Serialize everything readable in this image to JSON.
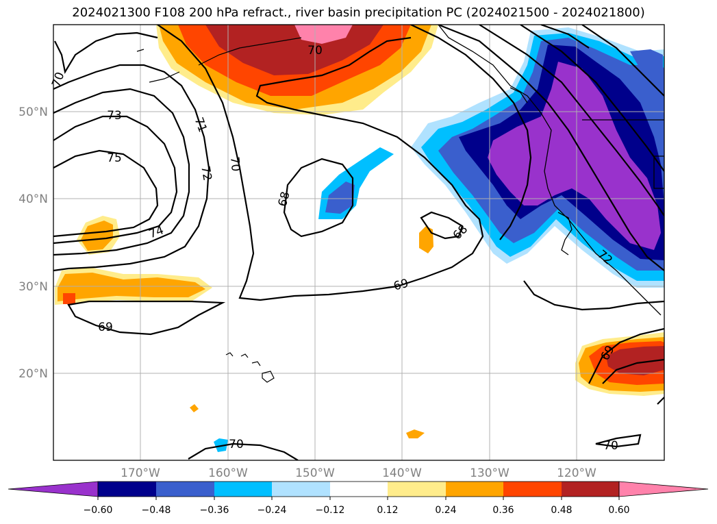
{
  "title": "2024021300 F108 200 hPa refract., river basin precipitation PC (2024021500 - 2024021800)",
  "map": {
    "lat_ticks": [
      "50°N",
      "40°N",
      "30°N",
      "20°N"
    ],
    "lon_ticks": [
      "170°W",
      "160°W",
      "150°W",
      "140°W",
      "130°W",
      "120°W"
    ],
    "contour_labels": [
      "70",
      "73",
      "71",
      "75",
      "72",
      "70",
      "74",
      "68",
      "69",
      "68",
      "69",
      "70",
      "72",
      "69",
      "70",
      "70"
    ]
  },
  "colorbar": {
    "ticks": [
      "−0.60",
      "−0.48",
      "−0.36",
      "−0.24",
      "−0.12",
      "0.12",
      "0.24",
      "0.36",
      "0.48",
      "0.60"
    ],
    "colors": [
      "#9932cc",
      "#00008b",
      "#3a5fcd",
      "#00bfff",
      "#b0e2ff",
      "#ffffff",
      "#ffec8b",
      "#ffa500",
      "#ff4500",
      "#b22222",
      "#ff82ab"
    ]
  }
}
